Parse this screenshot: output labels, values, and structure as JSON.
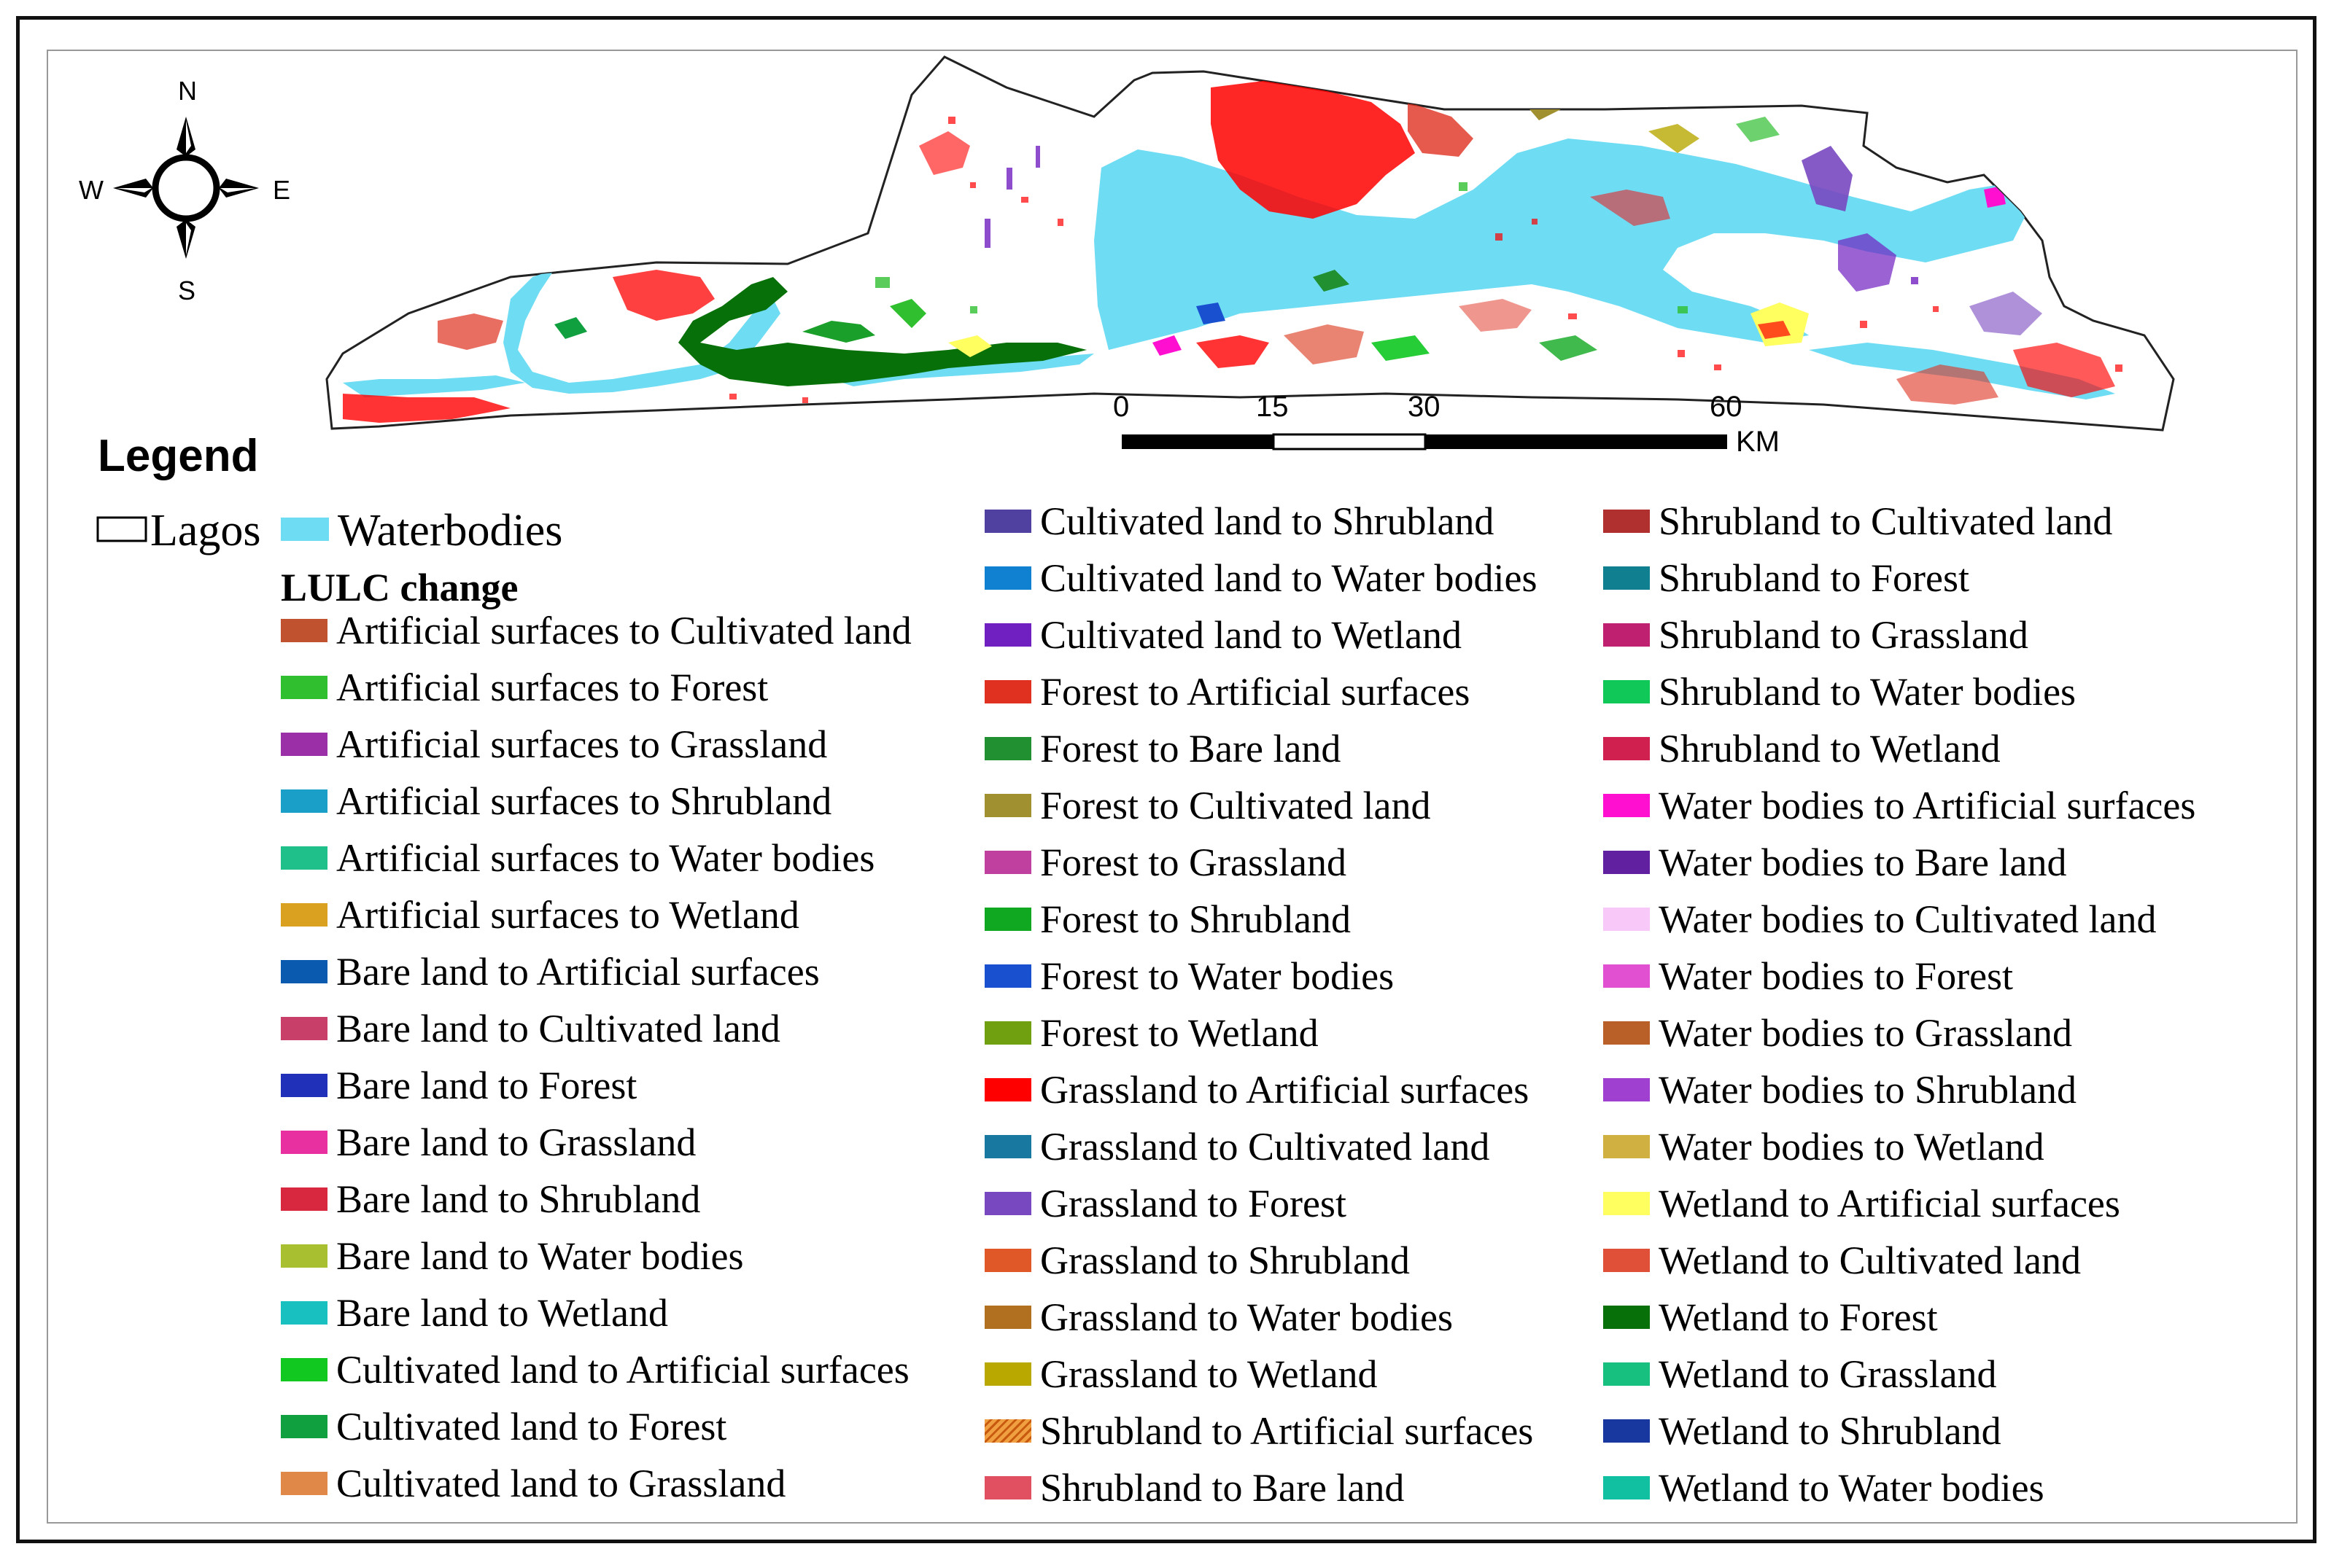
{
  "compass": {
    "n": "N",
    "s": "S",
    "e": "E",
    "w": "W"
  },
  "scale": {
    "ticks": [
      "0",
      "15",
      "30",
      "60"
    ],
    "unit": "KM"
  },
  "legend": {
    "title": "Legend",
    "lagos_label": "Lagos",
    "waterbodies_label": "Waterbodies",
    "waterbodies_color": "#6edcf3",
    "lulc_title": "LULC change",
    "columns": [
      [
        {
          "label": "Artificial surfaces to Cultivated land",
          "color": "#c0522f"
        },
        {
          "label": "Artificial surfaces to Forest",
          "color": "#2fbf2f"
        },
        {
          "label": "Artificial surfaces to Grassland",
          "color": "#9b2fa8"
        },
        {
          "label": "Artificial surfaces to Shrubland",
          "color": "#1aa0c8"
        },
        {
          "label": "Artificial surfaces to Water bodies",
          "color": "#20c08a"
        },
        {
          "label": "Artificial surfaces to Wetland",
          "color": "#daa020"
        },
        {
          "label": "Bare land to Artificial surfaces",
          "color": "#0a5ab0"
        },
        {
          "label": "Bare land to Cultivated land",
          "color": "#c8406a"
        },
        {
          "label": "Bare land to Forest",
          "color": "#2030b8"
        },
        {
          "label": "Bare land to Grassland",
          "color": "#e830a0"
        },
        {
          "label": "Bare land to Shrubland",
          "color": "#d82840"
        },
        {
          "label": "Bare land to Water bodies",
          "color": "#a8c030"
        },
        {
          "label": "Bare land to Wetland",
          "color": "#18c0c0"
        },
        {
          "label": "Cultivated land to Artificial surfaces",
          "color": "#10c820"
        },
        {
          "label": "Cultivated land to Forest",
          "color": "#10a040"
        },
        {
          "label": "Cultivated land to Grassland",
          "color": "#e08848"
        }
      ],
      [
        {
          "label": "Cultivated land to Shrubland",
          "color": "#5040a0"
        },
        {
          "label": "Cultivated land to Water bodies",
          "color": "#1080d0"
        },
        {
          "label": "Cultivated land to Wetland",
          "color": "#7020c0"
        },
        {
          "label": "Forest to Artificial surfaces",
          "color": "#e03020"
        },
        {
          "label": "Forest to Bare land",
          "color": "#209030"
        },
        {
          "label": "Forest to Cultivated land",
          "color": "#a09030"
        },
        {
          "label": "Forest to Grassland",
          "color": "#c040a0"
        },
        {
          "label": "Forest to Shrubland",
          "color": "#10a820"
        },
        {
          "label": "Forest to Water bodies",
          "color": "#1850d0"
        },
        {
          "label": "Forest to Wetland",
          "color": "#70a010"
        },
        {
          "label": "Grassland to Artificial surfaces",
          "color": "#ff0000"
        },
        {
          "label": "Grassland to Cultivated land",
          "color": "#1878a0"
        },
        {
          "label": "Grassland to Forest",
          "color": "#7848c0"
        },
        {
          "label": "Grassland to Shrubland",
          "color": "#e05828"
        },
        {
          "label": "Grassland to Water bodies",
          "color": "#b07020"
        },
        {
          "label": "Grassland to Wetland",
          "color": "#b8a800"
        },
        {
          "label": "Shrubland to Artificial surfaces",
          "color": "#f0a040",
          "pattern": "hatch"
        },
        {
          "label": "Shrubland to Bare land",
          "color": "#e05060"
        }
      ],
      [
        {
          "label": "Shrubland to Cultivated land",
          "color": "#b03030"
        },
        {
          "label": "Shrubland to Forest",
          "color": "#108090"
        },
        {
          "label": "Shrubland to Grassland",
          "color": "#c02070"
        },
        {
          "label": "Shrubland to Water bodies",
          "color": "#10c858"
        },
        {
          "label": "Shrubland to Wetland",
          "color": "#d02050"
        },
        {
          "label": "Water bodies to Artificial surfaces",
          "color": "#ff10d0"
        },
        {
          "label": "Water bodies to Bare land",
          "color": "#6020a0"
        },
        {
          "label": "Water bodies to Cultivated land",
          "color": "#f8c8f8"
        },
        {
          "label": "Water bodies to Forest",
          "color": "#e050d0"
        },
        {
          "label": "Water bodies to Grassland",
          "color": "#b86028"
        },
        {
          "label": "Water bodies to Shrubland",
          "color": "#a040d0"
        },
        {
          "label": "Water bodies to Wetland",
          "color": "#d0b040"
        },
        {
          "label": "Wetland to Artificial surfaces",
          "color": "#ffff60"
        },
        {
          "label": "Wetland to Cultivated land",
          "color": "#e05038"
        },
        {
          "label": "Wetland to Forest",
          "color": "#087008"
        },
        {
          "label": "Wetland to Grassland",
          "color": "#18c080"
        },
        {
          "label": "Wetland to Shrubland",
          "color": "#1838a0"
        },
        {
          "label": "Wetland to Water bodies",
          "color": "#10c0a0"
        }
      ]
    ]
  }
}
